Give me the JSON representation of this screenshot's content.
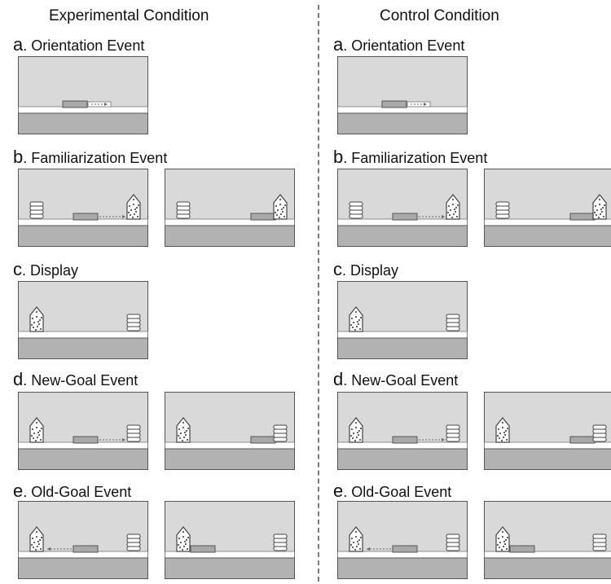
{
  "columns": [
    {
      "title": "Experimental Condition",
      "rows": [
        {
          "letter": "a",
          "text": ". Orientation Event"
        },
        {
          "letter": "b",
          "text": ". Familiarization Event"
        },
        {
          "letter": "c",
          "text": ". Display"
        },
        {
          "letter": "d",
          "text": ". New-Goal Event"
        },
        {
          "letter": "e",
          "text": ". Old-Goal Event"
        }
      ]
    },
    {
      "title": "Control Condition",
      "rows": [
        {
          "letter": "a",
          "text": ". Orientation Event"
        },
        {
          "letter": "b",
          "text": ". Familiarization Event"
        },
        {
          "letter": "c",
          "text": ". Display"
        },
        {
          "letter": "d",
          "text": ". New-Goal Event"
        },
        {
          "letter": "e",
          "text": ". Old-Goal Event"
        }
      ]
    }
  ],
  "colors": {
    "sky": "#d9d9d9",
    "floor": "#b2b2b2",
    "stage": "#ffffff",
    "claw": "#a9a9a9",
    "outline": "#444444"
  }
}
